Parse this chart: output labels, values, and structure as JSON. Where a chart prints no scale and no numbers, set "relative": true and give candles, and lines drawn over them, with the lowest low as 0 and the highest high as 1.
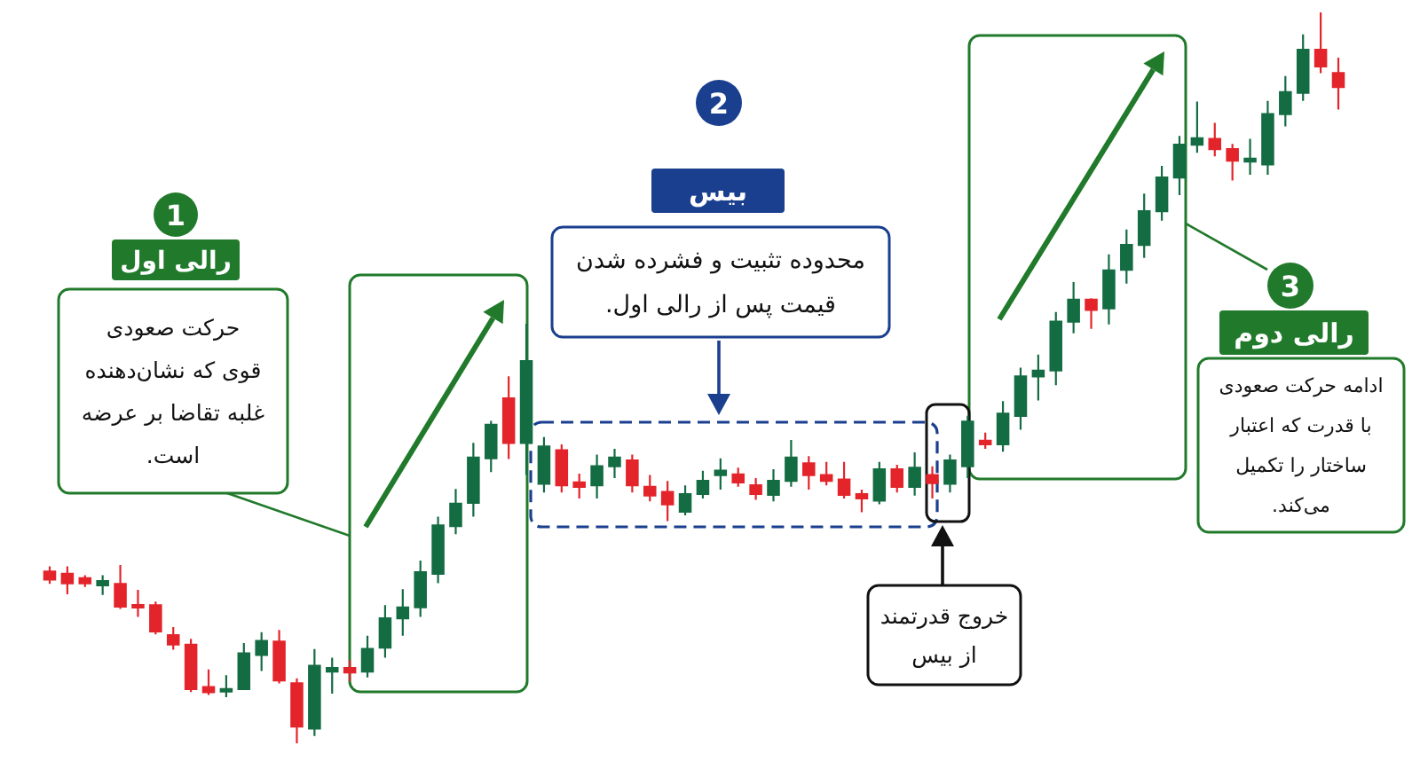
{
  "chart_data": {
    "type": "candlestick",
    "relative": true,
    "categories": [
      null,
      null,
      null,
      null,
      null,
      null,
      null,
      null,
      null,
      null,
      null,
      null,
      null,
      null,
      null,
      null,
      null,
      null,
      null,
      null,
      null,
      null,
      null,
      null,
      null,
      null,
      null,
      null,
      null,
      null,
      null,
      null,
      null,
      null,
      null,
      null,
      null,
      null,
      null,
      null,
      null,
      null,
      null,
      null,
      null,
      null,
      null,
      null,
      null,
      null,
      null,
      null,
      null,
      null,
      null,
      null,
      null,
      null,
      null,
      null,
      null,
      null,
      null,
      null,
      null,
      null,
      null,
      null,
      null,
      null,
      null,
      null,
      null,
      null
    ],
    "ohlc": [
      [
        0.235,
        0.242,
        0.218,
        0.224
      ],
      [
        0.232,
        0.242,
        0.204,
        0.219
      ],
      [
        0.226,
        0.23,
        0.214,
        0.219
      ],
      [
        0.216,
        0.23,
        0.203,
        0.222
      ],
      [
        0.218,
        0.244,
        0.184,
        0.187
      ],
      [
        0.189,
        0.21,
        0.173,
        0.186
      ],
      [
        0.189,
        0.194,
        0.149,
        0.153
      ],
      [
        0.148,
        0.159,
        0.128,
        0.135
      ],
      [
        0.135,
        0.143,
        0.07,
        0.074
      ],
      [
        0.077,
        0.101,
        0.066,
        0.07
      ],
      [
        0.071,
        0.093,
        0.063,
        0.074
      ],
      [
        0.074,
        0.137,
        0.073,
        0.123
      ],
      [
        0.121,
        0.152,
        0.099,
        0.14
      ],
      [
        0.139,
        0.155,
        0.082,
        0.086
      ],
      [
        0.082,
        0.089,
        0,
        0.023
      ],
      [
        0.02,
        0.129,
        0.01,
        0.106
      ],
      [
        0.098,
        0.117,
        0.068,
        0.103
      ],
      [
        0.103,
        0.114,
        0.085,
        0.097
      ],
      [
        0.098,
        0.147,
        0.09,
        0.129
      ],
      [
        0.131,
        0.189,
        0.117,
        0.171
      ],
      [
        0.171,
        0.211,
        0.147,
        0.186
      ],
      [
        0.186,
        0.25,
        0.173,
        0.234
      ],
      [
        0.232,
        0.31,
        0.219,
        0.298
      ],
      [
        0.297,
        0.348,
        0.286,
        0.328
      ],
      [
        0.329,
        0.411,
        0.31,
        0.391
      ],
      [
        0.39,
        0.441,
        0.371,
        0.436
      ],
      [
        0.472,
        0.502,
        0.389,
        0.411
      ],
      [
        0.411,
        0.574,
        0.367,
        0.523
      ],
      [
        0.355,
        0.419,
        0.343,
        0.406
      ],
      [
        0.401,
        0.409,
        0.343,
        0.353
      ],
      [
        0.357,
        0.369,
        0.335,
        0.351
      ],
      [
        0.353,
        0.395,
        0.335,
        0.379
      ],
      [
        0.379,
        0.403,
        0.363,
        0.391
      ],
      [
        0.387,
        0.395,
        0.343,
        0.353
      ],
      [
        0.351,
        0.367,
        0.331,
        0.339
      ],
      [
        0.344,
        0.359,
        0.304,
        0.327
      ],
      [
        0.317,
        0.353,
        0.312,
        0.341
      ],
      [
        0.341,
        0.373,
        0.335,
        0.359
      ],
      [
        0.367,
        0.39,
        0.347,
        0.373
      ],
      [
        0.368,
        0.377,
        0.351,
        0.357
      ],
      [
        0.353,
        0.363,
        0.333,
        0.341
      ],
      [
        0.34,
        0.375,
        0.331,
        0.359
      ],
      [
        0.359,
        0.415,
        0.351,
        0.391
      ],
      [
        0.383,
        0.393,
        0.347,
        0.367
      ],
      [
        0.367,
        0.385,
        0.353,
        0.359
      ],
      [
        0.361,
        0.385,
        0.335,
        0.34
      ],
      [
        0.341,
        0.347,
        0.316,
        0.335
      ],
      [
        0.332,
        0.385,
        0.327,
        0.375
      ],
      [
        0.375,
        0.381,
        0.343,
        0.351
      ],
      [
        0.351,
        0.398,
        0.339,
        0.377
      ],
      [
        0.367,
        0.379,
        0.335,
        0.356
      ],
      [
        0.355,
        0.395,
        0.343,
        0.387
      ],
      [
        0.379,
        0.448,
        0.363,
        0.44
      ],
      [
        0.414,
        0.425,
        0.403,
        0.409
      ],
      [
        0.409,
        0.468,
        0.399,
        0.451
      ],
      [
        0.448,
        0.514,
        0.429,
        0.502
      ],
      [
        0.502,
        0.532,
        0.469,
        0.51
      ],
      [
        0.51,
        0.59,
        0.49,
        0.577
      ],
      [
        0.577,
        0.631,
        0.561,
        0.607
      ],
      [
        0.607,
        0.609,
        0.567,
        0.593
      ],
      [
        0.595,
        0.669,
        0.573,
        0.647
      ],
      [
        0.648,
        0.703,
        0.629,
        0.682
      ],
      [
        0.682,
        0.752,
        0.664,
        0.728
      ],
      [
        0.728,
        0.79,
        0.715,
        0.774
      ],
      [
        0.774,
        0.831,
        0.75,
        0.819
      ],
      [
        0.819,
        0.878,
        0.808,
        0.828
      ],
      [
        0.827,
        0.849,
        0.803,
        0.813
      ],
      [
        0.813,
        0.82,
        0.77,
        0.797
      ],
      [
        0.796,
        0.827,
        0.778,
        0.8
      ],
      [
        0.792,
        0.879,
        0.778,
        0.861
      ],
      [
        0.861,
        0.913,
        0.844,
        0.891
      ],
      [
        0.89,
        0.97,
        0.879,
        0.949
      ],
      [
        0.949,
        1,
        0.917,
        0.926
      ],
      [
        0.917,
        0.938,
        0.867,
        0.898
      ]
    ],
    "colors": [
      "#e3242b",
      "#e3242b",
      "#e3242b",
      "#146c43",
      "#e3242b",
      "#e3242b",
      "#e3242b",
      "#e3242b",
      "#e3242b",
      "#e3242b",
      "#146c43",
      "#146c43",
      "#146c43",
      "#e3242b",
      "#e3242b",
      "#146c43",
      "#146c43",
      "#e3242b",
      "#146c43",
      "#146c43",
      "#146c43",
      "#146c43",
      "#146c43",
      "#146c43",
      "#146c43",
      "#146c43",
      "#e3242b",
      "#146c43",
      "#146c43",
      "#e3242b",
      "#e3242b",
      "#146c43",
      "#146c43",
      "#e3242b",
      "#e3242b",
      "#e3242b",
      "#146c43",
      "#146c43",
      "#146c43",
      "#e3242b",
      "#e3242b",
      "#146c43",
      "#146c43",
      "#e3242b",
      "#e3242b",
      "#e3242b",
      "#e3242b",
      "#146c43",
      "#e3242b",
      "#146c43",
      "#e3242b",
      "#146c43",
      "#146c43",
      "#e3242b",
      "#146c43",
      "#146c43",
      "#146c43",
      "#146c43",
      "#146c43",
      "#e3242b",
      "#146c43",
      "#146c43",
      "#146c43",
      "#146c43",
      "#146c43",
      "#146c43",
      "#e3242b",
      "#e3242b",
      "#146c43",
      "#146c43",
      "#146c43",
      "#146c43",
      "#e3242b",
      "#e3242b"
    ],
    "annotations": [
      "1",
      "رالی اول",
      "حرکت صعودی\nقوی که نشان‌دهنده\nغلبه تقاضا بر عرضه\nاست.",
      "2",
      "بیس",
      "محدوده تثبیت و فشرده شدن\nقیمت پس از رالی اول.",
      "3",
      "رالی دوم",
      "ادامه حرکت صعودی\nبا قدرت که اعتبار\nساختار را تکمیل\nمی‌کند.",
      "خروج قدرتمند\nاز بیس"
    ]
  }
}
